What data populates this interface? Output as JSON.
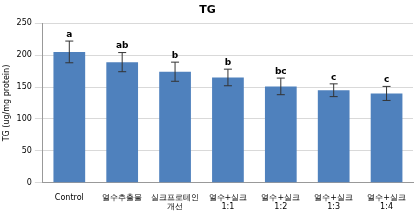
{
  "chart_data": {
    "type": "bar",
    "title": "TG",
    "y_label": "TG (ug/mg protein)",
    "categories": [
      "Control",
      "열수추출물",
      "실크프로테인 개선",
      "열수+실크 1:1",
      "열수+실크 1:2",
      "열수+실크 1:3",
      "열수+실크 1:4"
    ],
    "values": [
      205,
      189,
      174,
      165,
      151,
      145,
      140
    ],
    "errors": [
      17,
      15,
      15,
      13,
      13,
      10,
      11
    ],
    "letters": [
      "a",
      "ab",
      "b",
      "b",
      "bc",
      "c",
      "c"
    ],
    "color": "#4f81bd",
    "ylim": [
      0,
      250
    ],
    "yticks": [
      0,
      50,
      100,
      150,
      200,
      250
    ],
    "grid": true
  }
}
